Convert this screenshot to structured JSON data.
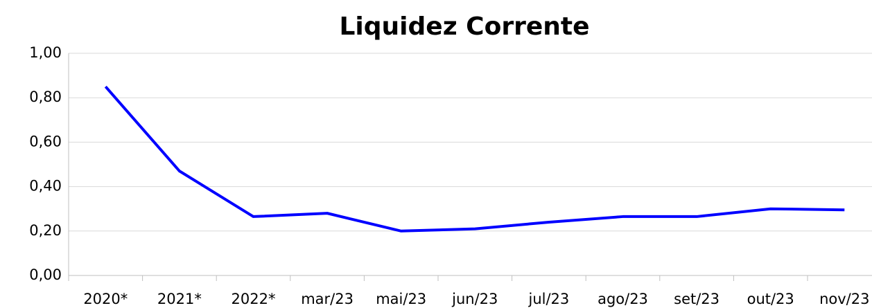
{
  "chart_data": {
    "type": "line",
    "title": "Liquidez Corrente",
    "categories": [
      "2020*",
      "2021*",
      "2022*",
      "mar/23",
      "mai/23",
      "jun/23",
      "jul/23",
      "ago/23",
      "set/23",
      "out/23",
      "nov/23"
    ],
    "values": [
      0.85,
      0.47,
      0.265,
      0.28,
      0.2,
      0.21,
      0.24,
      0.265,
      0.265,
      0.3,
      0.295
    ],
    "color": "#0000ff",
    "ylim": [
      0,
      1
    ],
    "yticks": [
      {
        "value": 0,
        "label": "0,00"
      },
      {
        "value": 0.2,
        "label": "0,20"
      },
      {
        "value": 0.4,
        "label": "0,40"
      },
      {
        "value": 0.6,
        "label": "0,60"
      },
      {
        "value": 0.8,
        "label": "0,80"
      },
      {
        "value": 1,
        "label": "1,00"
      }
    ],
    "grid": true
  }
}
